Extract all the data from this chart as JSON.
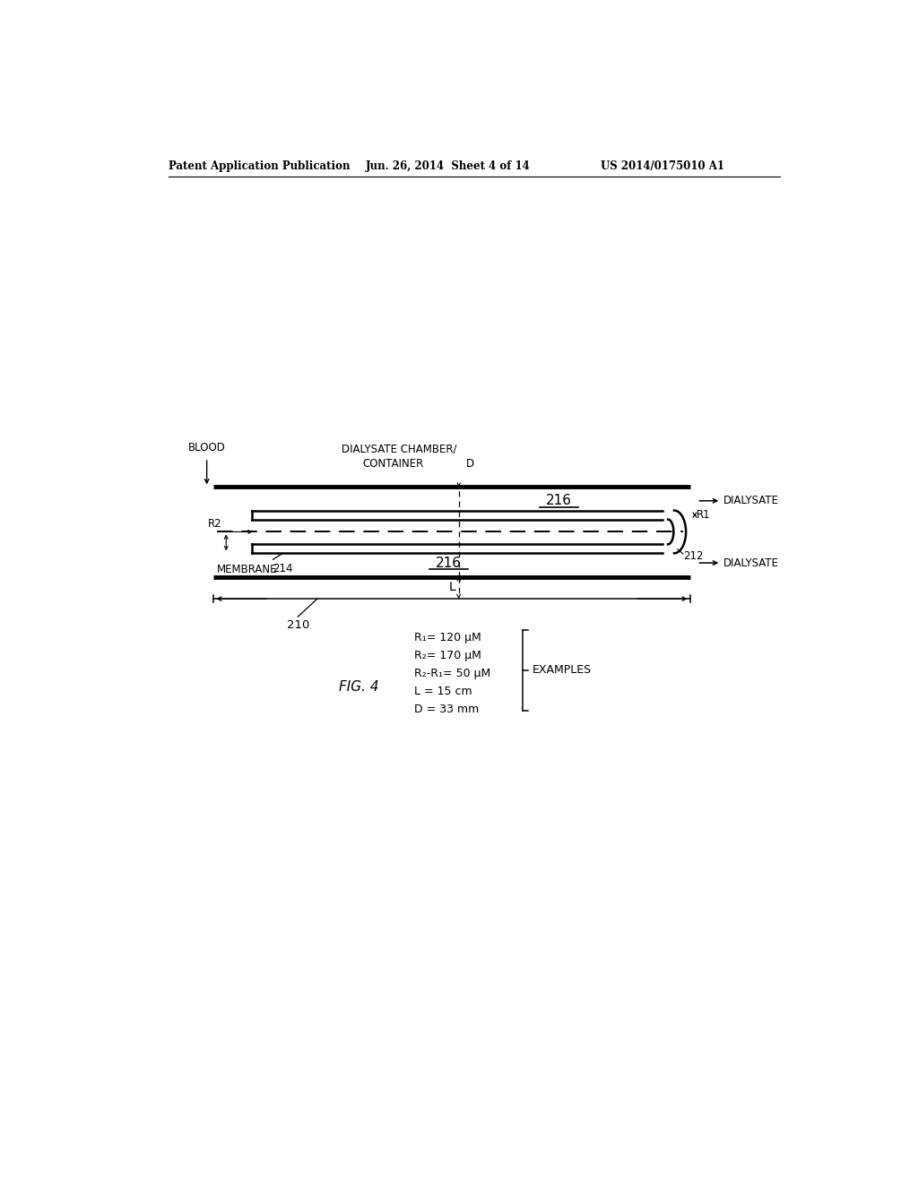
{
  "bg_color": "#ffffff",
  "header_text": "Patent Application Publication",
  "header_date": "Jun. 26, 2014  Sheet 4 of 14",
  "header_patent": "US 2014/0175010 A1",
  "fig_label": "FIG. 4",
  "labels": {
    "blood": "BLOOD",
    "dialysate_chamber_1": "DIALYSATE CHAMBER/",
    "dialysate_chamber_2": "CONTAINER",
    "D": "D",
    "216_top": "216",
    "dialysate_top": "DIALYSATE",
    "R2": "R2",
    "R1": "R1",
    "membrane": "MEMBRANE",
    "214": "214",
    "212": "212",
    "216_bot": "216",
    "dialysate_bot": "DIALYSATE",
    "L": "L",
    "210": "210",
    "examples_title": "EXAMPLES",
    "eq1": "R₁= 120 μM",
    "eq2": "R₂= 170 μM",
    "eq3": "R₂-R₁= 50 μM",
    "eq4": "L = 15 cm",
    "eq5": "D = 33 mm"
  }
}
